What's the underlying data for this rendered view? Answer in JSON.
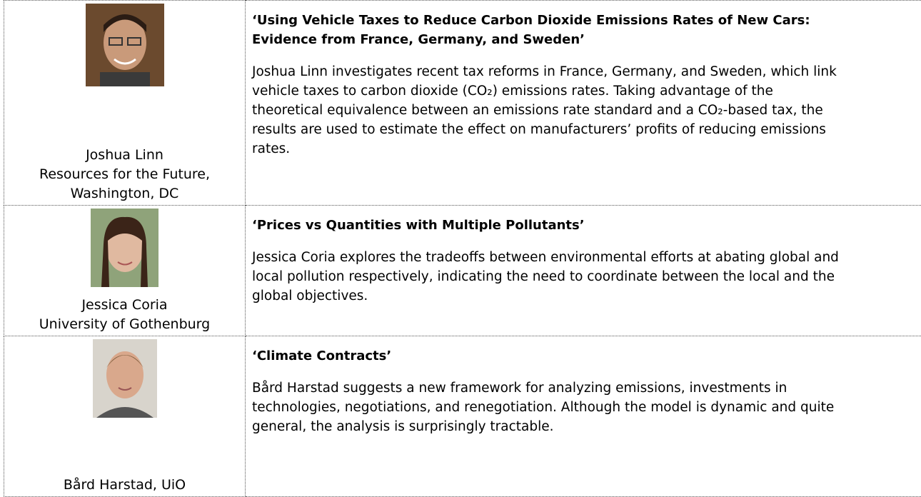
{
  "rows": [
    {
      "name_lines": [
        "Joshua Linn",
        "Resources for the Future,",
        "Washington, DC"
      ],
      "title": "‘Using Vehicle Taxes to Reduce Carbon Dioxide Emissions Rates of New Cars: Evidence from France, Germany, and Sweden’",
      "description": "Joshua Linn investigates recent tax reforms in France, Germany, and Sweden, which link vehicle taxes to carbon dioxide (CO₂) emissions rates. Taking advantage of the theoretical equivalence between an emissions rate standard and a CO₂-based tax, the results are used to estimate the effect on manufacturers’ profits of reducing emissions rates."
    },
    {
      "name_lines": [
        "Jessica Coria",
        "University of Gothenburg"
      ],
      "title": "‘Prices vs Quantities with Multiple Pollutants’",
      "description": "Jessica Coria explores the tradeoffs between environmental efforts at abating global and local pollution respectively, indicating the need to coordinate between the local and the global objectives."
    },
    {
      "name_lines": [
        "Bård Harstad, UiO"
      ],
      "title": "‘Climate Contracts’",
      "description": "Bård Harstad suggests a new framework for analyzing emissions, investments in technologies, negotiations, and renegotiation. Although the model is dynamic and quite general, the analysis is surprisingly tractable."
    }
  ]
}
